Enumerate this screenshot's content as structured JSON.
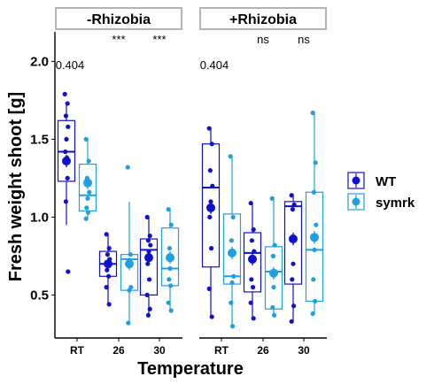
{
  "chart_data": {
    "type": "box",
    "facets": [
      {
        "label": "-Rhizobia",
        "pvalue_label": "0.404",
        "significance": [
          "",
          "***",
          "***"
        ],
        "groups": {
          "WT": {
            "RT": {
              "q1": 1.23,
              "median": 1.42,
              "q3": 1.62,
              "whisker_low": 0.95,
              "whisker_high": 1.74,
              "mean": 1.36,
              "points": [
                1.79,
                1.73,
                1.65,
                1.58,
                1.5,
                1.42,
                1.38,
                1.36,
                1.25,
                1.1,
                0.65
              ]
            },
            "26": {
              "q1": 0.62,
              "median": 0.7,
              "q3": 0.78,
              "whisker_low": 0.44,
              "whisker_high": 0.89,
              "mean": 0.7,
              "points": [
                0.89,
                0.8,
                0.76,
                0.73,
                0.7,
                0.66,
                0.62,
                0.55,
                0.44
              ]
            },
            "30": {
              "q1": 0.5,
              "median": 0.79,
              "q3": 0.86,
              "whisker_low": 0.36,
              "whisker_high": 1.0,
              "mean": 0.74,
              "points": [
                1.0,
                0.88,
                0.85,
                0.82,
                0.78,
                0.7,
                0.6,
                0.5,
                0.41,
                0.37
              ]
            }
          },
          "symrk": {
            "RT": {
              "q1": 1.04,
              "median": 1.14,
              "q3": 1.34,
              "whisker_low": 0.99,
              "whisker_high": 1.5,
              "mean": 1.22,
              "points": [
                1.5,
                1.36,
                1.25,
                1.16,
                1.12,
                1.06,
                1.03,
                0.99
              ]
            },
            "26": {
              "q1": 0.53,
              "median": 0.73,
              "q3": 0.76,
              "whisker_low": 0.32,
              "whisker_high": 1.1,
              "mean": 0.7,
              "points": [
                1.32,
                0.76,
                0.7,
                0.55,
                0.53,
                0.32
              ]
            },
            "30": {
              "q1": 0.56,
              "median": 0.67,
              "q3": 0.93,
              "whisker_low": 0.4,
              "whisker_high": 1.05,
              "mean": 0.74,
              "points": [
                1.05,
                0.95,
                0.8,
                0.73,
                0.67,
                0.6,
                0.56,
                0.45,
                0.4
              ]
            }
          }
        }
      },
      {
        "label": "+Rhizobia",
        "pvalue_label": "0.404",
        "significance": [
          "",
          "ns",
          "ns"
        ],
        "groups": {
          "WT": {
            "RT": {
              "q1": 0.68,
              "median": 1.19,
              "q3": 1.47,
              "whisker_low": 0.36,
              "whisker_high": 1.57,
              "mean": 1.06,
              "points": [
                1.57,
                1.47,
                1.3,
                1.2,
                1.1,
                1.0,
                0.8,
                0.54,
                0.36
              ]
            },
            "26": {
              "q1": 0.52,
              "median": 0.77,
              "q3": 0.9,
              "whisker_low": 0.35,
              "whisker_high": 1.09,
              "mean": 0.73,
              "points": [
                1.09,
                0.92,
                0.85,
                0.78,
                0.72,
                0.6,
                0.55,
                0.45,
                0.35
              ]
            },
            "30": {
              "q1": 0.57,
              "median": 1.07,
              "q3": 1.1,
              "whisker_low": 0.33,
              "whisker_high": 1.15,
              "mean": 0.86,
              "points": [
                1.14,
                1.08,
                1.05,
                0.86,
                0.7,
                0.6,
                0.43,
                0.33
              ]
            }
          },
          "symrk": {
            "RT": {
              "q1": 0.57,
              "median": 0.62,
              "q3": 1.02,
              "whisker_low": 0.3,
              "whisker_high": 1.38,
              "mean": 0.77,
              "points": [
                1.39,
                1.0,
                0.85,
                0.62,
                0.58,
                0.45,
                0.3
              ]
            },
            "26": {
              "q1": 0.41,
              "median": 0.65,
              "q3": 0.81,
              "whisker_low": 0.37,
              "whisker_high": 1.13,
              "mean": 0.64,
              "points": [
                1.12,
                0.82,
                0.75,
                0.65,
                0.55,
                0.42,
                0.37
              ]
            },
            "30": {
              "q1": 0.46,
              "median": 0.79,
              "q3": 1.16,
              "whisker_low": 0.38,
              "whisker_high": 1.67,
              "mean": 0.87,
              "points": [
                1.67,
                1.35,
                1.16,
                0.95,
                0.79,
                0.6,
                0.46,
                0.38
              ]
            }
          }
        }
      }
    ],
    "categories": [
      "RT",
      "26",
      "30"
    ],
    "xlabel": "Temperature",
    "ylabel": "Fresh weight shoot [g]",
    "ylim": [
      0.25,
      2.2
    ],
    "yticks": [
      0.5,
      1.0,
      1.5,
      2.0
    ],
    "ytick_labels": [
      "0.5",
      "1.0",
      "1.5",
      "2.0"
    ],
    "grid": false,
    "legend": {
      "placement": "right",
      "entries": [
        {
          "name": "WT",
          "color": "#1010d0"
        },
        {
          "name": "symrk",
          "color": "#1ea0de"
        }
      ]
    }
  }
}
